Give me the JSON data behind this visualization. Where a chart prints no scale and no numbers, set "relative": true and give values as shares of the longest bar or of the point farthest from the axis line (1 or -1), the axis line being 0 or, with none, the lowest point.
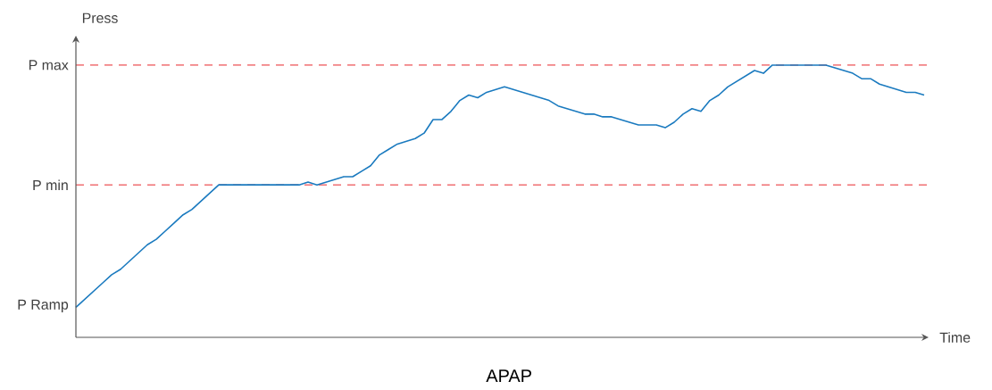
{
  "chart_data": {
    "type": "line",
    "title": "APAP",
    "xlabel": "Time",
    "ylabel": "Press",
    "relative": true,
    "categories": [
      null,
      null,
      null,
      null,
      null,
      null,
      null,
      null,
      null,
      null,
      null,
      null,
      null,
      null,
      null,
      null,
      null,
      null,
      null,
      null,
      null,
      null,
      null,
      null,
      null,
      null,
      null,
      null,
      null,
      null,
      null,
      null,
      null,
      null,
      null,
      null,
      null,
      null,
      null,
      null,
      null,
      null,
      null,
      null,
      null,
      null,
      null,
      null,
      null,
      null,
      null,
      null,
      null,
      null,
      null,
      null,
      null,
      null,
      null,
      null,
      null,
      null,
      null,
      null,
      null,
      null,
      null,
      null,
      null,
      null,
      null,
      null,
      null,
      null,
      null,
      null,
      null,
      null,
      null,
      null,
      null,
      null,
      null,
      null,
      null,
      null,
      null,
      null,
      null,
      null,
      null,
      null,
      null,
      null,
      null,
      null
    ],
    "series": [
      {
        "color": "#1a7abf",
        "values": [
          0.11,
          0.14,
          0.17,
          0.2,
          0.23,
          0.25,
          0.28,
          0.31,
          0.34,
          0.36,
          0.39,
          0.42,
          0.45,
          0.47,
          0.5,
          0.53,
          0.56,
          0.56,
          0.56,
          0.56,
          0.56,
          0.56,
          0.56,
          0.56,
          0.56,
          0.56,
          0.57,
          0.56,
          0.57,
          0.58,
          0.59,
          0.59,
          0.61,
          0.63,
          0.67,
          0.69,
          0.71,
          0.72,
          0.73,
          0.75,
          0.8,
          0.8,
          0.83,
          0.87,
          0.89,
          0.88,
          0.9,
          0.91,
          0.92,
          0.91,
          0.9,
          0.89,
          0.88,
          0.87,
          0.85,
          0.84,
          0.83,
          0.82,
          0.82,
          0.81,
          0.81,
          0.8,
          0.79,
          0.78,
          0.78,
          0.78,
          0.77,
          0.79,
          0.82,
          0.84,
          0.83,
          0.87,
          0.89,
          0.92,
          0.94,
          0.96,
          0.98,
          0.97,
          1.0,
          1.0,
          1.0,
          1.0,
          1.0,
          1.0,
          1.0,
          0.99,
          0.98,
          0.97,
          0.95,
          0.95,
          0.93,
          0.92,
          0.91,
          0.9,
          0.9,
          0.89
        ]
      }
    ],
    "ref_lines": [
      {
        "axis": "y",
        "value": 1.0,
        "label": "P max",
        "color": "#e8262a",
        "line_style": "dashed"
      },
      {
        "axis": "y",
        "value": 0.56,
        "label": "P min",
        "color": "#e8262a",
        "line_style": "dashed"
      }
    ],
    "annotations": [
      "P Ramp"
    ]
  }
}
